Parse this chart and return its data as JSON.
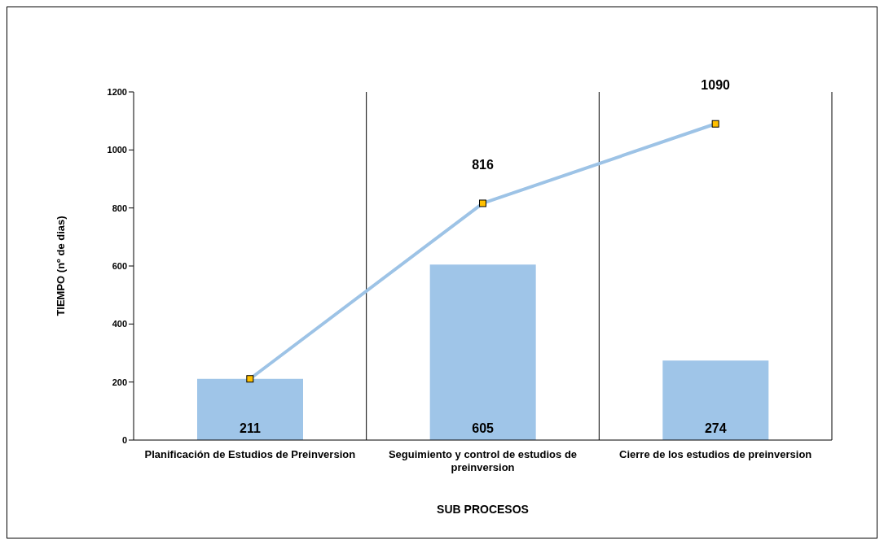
{
  "chart_data": {
    "type": "bar",
    "xlabel": "SUB PROCESOS",
    "ylabel": "TIEMPO (nº de dias)",
    "categories": [
      "Planificación de Estudios de Preinversion",
      "Seguimiento y control de estudios de preinversion",
      "Cierre de los estudios de preinversion"
    ],
    "series": [
      {
        "color": "#9fc5e8",
        "values": [
          211,
          605,
          274
        ],
        "value_labels": [
          "211",
          "605",
          "274"
        ]
      },
      {
        "type": "line",
        "color": "#9dc3e6",
        "values": [
          211,
          816,
          1090
        ],
        "value_labels": [
          null,
          "816",
          "1090"
        ],
        "marker": "square"
      }
    ],
    "ylim": [
      0,
      1200
    ],
    "yticks": [
      0,
      200,
      400,
      600,
      800,
      1000,
      1200
    ],
    "grid": "x"
  }
}
